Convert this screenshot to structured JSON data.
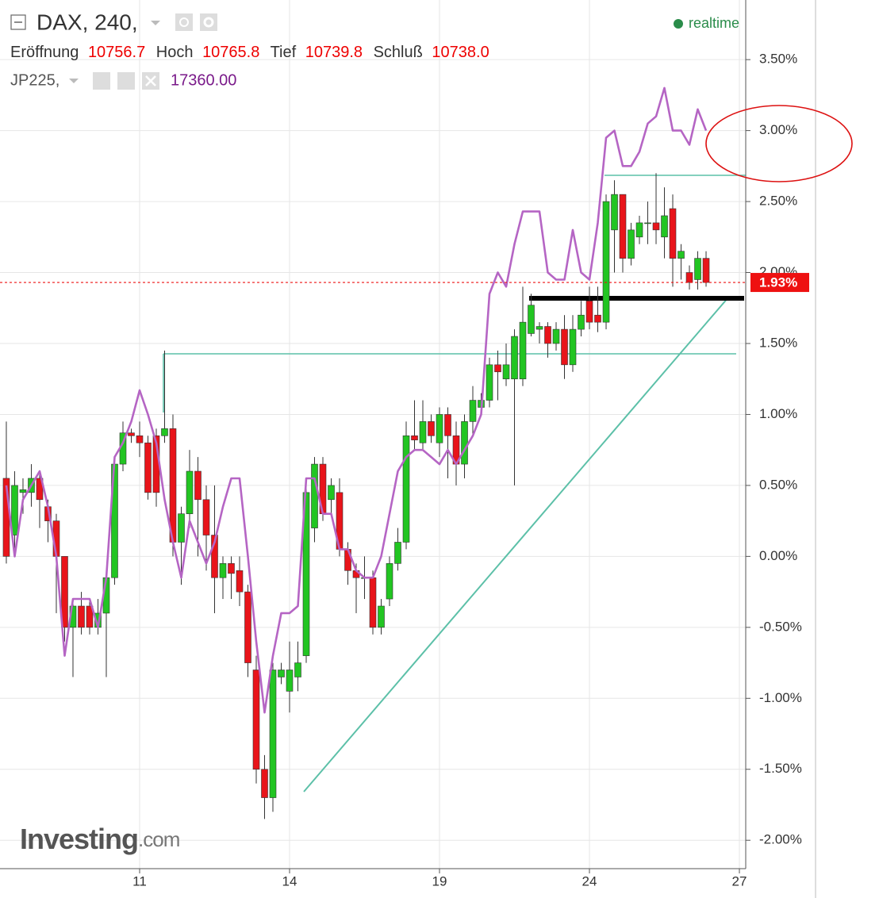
{
  "header": {
    "title": "DAX, 240,",
    "realtime": "realtime",
    "ohlc": [
      {
        "label": "Eröffnung",
        "value": "10756.7"
      },
      {
        "label": "Hoch",
        "value": "10765.8"
      },
      {
        "label": "Tief",
        "value": "10739.8"
      },
      {
        "label": "Schluß",
        "value": "10738.0"
      }
    ],
    "compare": {
      "name": "JP225,",
      "value": "17360.00"
    },
    "watermark": {
      "brand": "Investing",
      "suffix": ".com"
    }
  },
  "chart_data": {
    "type": "candlestick",
    "up_color": "#22c522",
    "down_color": "#e8141a",
    "wick_color": "#333333",
    "open": [
      0.55,
      0.15,
      0.45,
      0.45,
      0.55,
      0.35,
      0.25,
      0.0,
      -0.5,
      -0.35,
      -0.35,
      -0.5,
      -0.4,
      -0.15,
      0.65,
      0.87,
      0.85,
      0.8,
      0.85,
      0.85,
      0.9,
      0.1,
      0.3,
      0.6,
      0.4,
      0.15,
      -0.15,
      -0.05,
      -0.1,
      -0.25,
      -0.8,
      -1.5,
      -1.7,
      -0.85,
      -0.95,
      -0.85,
      -0.7,
      0.2,
      0.65,
      0.4,
      0.45,
      0.05,
      -0.1,
      -0.15,
      -0.15,
      -0.5,
      -0.3,
      -0.05,
      0.1,
      0.85,
      0.8,
      0.95,
      0.8,
      1.0,
      0.85,
      0.65,
      0.95,
      1.05,
      1.1,
      1.35,
      1.25,
      1.25,
      1.25,
      1.57,
      1.6,
      1.62,
      1.5,
      1.6,
      1.35,
      1.6,
      1.8,
      1.7,
      1.65,
      2.3,
      2.55,
      2.1,
      2.25,
      2.35,
      2.35,
      2.25,
      2.45,
      2.1,
      2.0,
      1.95,
      2.1
    ],
    "high": [
      0.95,
      0.6,
      0.55,
      0.65,
      0.6,
      0.4,
      0.3,
      0.0,
      -0.3,
      -0.25,
      -0.3,
      -0.3,
      -0.1,
      0.7,
      0.95,
      0.9,
      0.95,
      0.85,
      0.9,
      1.45,
      1.0,
      0.35,
      0.75,
      0.7,
      0.5,
      0.5,
      0.0,
      0.0,
      0.0,
      -0.2,
      -0.7,
      -1.4,
      -0.75,
      -0.75,
      -0.6,
      -0.6,
      0.5,
      0.7,
      0.7,
      0.55,
      0.55,
      0.1,
      -0.05,
      0.0,
      -0.1,
      -0.3,
      0.0,
      0.2,
      0.95,
      1.1,
      1.1,
      1.0,
      1.05,
      1.05,
      0.95,
      1.0,
      1.2,
      1.15,
      1.4,
      1.45,
      1.5,
      1.6,
      1.9,
      1.85,
      1.65,
      1.65,
      1.65,
      1.7,
      1.7,
      1.8,
      1.9,
      1.9,
      2.55,
      2.65,
      2.55,
      2.35,
      2.4,
      2.5,
      2.7,
      2.6,
      2.55,
      2.2,
      2.05,
      2.15,
      2.15
    ],
    "low": [
      -0.05,
      0.0,
      0.3,
      0.35,
      0.2,
      0.1,
      -0.4,
      -0.6,
      -0.85,
      -0.55,
      -0.55,
      -0.55,
      -0.85,
      -0.2,
      0.6,
      0.8,
      0.7,
      0.4,
      0.35,
      0.8,
      0.0,
      -0.2,
      0.2,
      0.0,
      -0.1,
      -0.4,
      -0.3,
      -0.3,
      -0.35,
      -0.85,
      -1.6,
      -1.85,
      -1.8,
      -0.9,
      -1.1,
      -0.95,
      -0.75,
      0.1,
      0.25,
      0.3,
      0.0,
      -0.2,
      -0.4,
      -0.3,
      -0.55,
      -0.55,
      -0.35,
      -0.1,
      0.05,
      0.75,
      0.75,
      0.8,
      0.7,
      0.55,
      0.5,
      0.55,
      0.85,
      1.0,
      1.05,
      1.1,
      1.2,
      0.5,
      1.2,
      1.55,
      1.5,
      1.4,
      1.45,
      1.25,
      1.3,
      1.55,
      1.6,
      1.58,
      1.6,
      2.0,
      2.0,
      2.05,
      2.2,
      2.2,
      2.2,
      2.1,
      1.9,
      1.95,
      1.88,
      1.88,
      1.9
    ],
    "close": [
      0.0,
      0.5,
      0.47,
      0.55,
      0.4,
      0.25,
      0.0,
      -0.5,
      -0.35,
      -0.5,
      -0.5,
      -0.4,
      -0.15,
      0.65,
      0.87,
      0.85,
      0.8,
      0.45,
      0.45,
      0.9,
      0.1,
      0.3,
      0.6,
      0.4,
      0.15,
      -0.15,
      -0.05,
      -0.12,
      -0.25,
      -0.75,
      -1.5,
      -1.7,
      -0.8,
      -0.8,
      -0.8,
      -0.75,
      0.45,
      0.65,
      0.3,
      0.5,
      0.05,
      -0.1,
      -0.15,
      -0.15,
      -0.5,
      -0.35,
      -0.05,
      0.1,
      0.85,
      0.82,
      0.95,
      0.85,
      1.0,
      0.85,
      0.65,
      0.95,
      1.1,
      1.1,
      1.35,
      1.3,
      1.35,
      1.55,
      1.65,
      1.77,
      1.62,
      1.5,
      1.6,
      1.35,
      1.6,
      1.7,
      1.65,
      1.65,
      2.5,
      2.55,
      2.1,
      2.3,
      2.35,
      2.35,
      2.3,
      2.4,
      2.1,
      2.15,
      1.93,
      2.1,
      1.93
    ],
    "overlay": {
      "color": "#b565c4",
      "values": [
        0.5,
        0.0,
        0.4,
        0.5,
        0.6,
        0.35,
        0.0,
        -0.7,
        -0.3,
        -0.3,
        -0.3,
        -0.5,
        -0.15,
        0.7,
        0.8,
        0.95,
        1.17,
        1.0,
        0.8,
        0.4,
        0.1,
        -0.15,
        0.25,
        0.1,
        -0.05,
        0.1,
        0.35,
        0.55,
        0.55,
        0.0,
        -0.6,
        -1.1,
        -0.7,
        -0.4,
        -0.4,
        -0.35,
        0.55,
        0.55,
        0.3,
        0.3,
        0.05,
        0.05,
        -0.1,
        -0.15,
        -0.15,
        0.0,
        0.3,
        0.6,
        0.7,
        0.75,
        0.75,
        0.7,
        0.65,
        0.75,
        0.65,
        0.75,
        0.85,
        1.0,
        1.85,
        2.0,
        1.9,
        2.2,
        2.43,
        2.43,
        2.43,
        2.0,
        1.95,
        1.95,
        2.3,
        2.0,
        1.95,
        2.35,
        2.95,
        3.0,
        2.75,
        2.75,
        2.85,
        3.05,
        3.1,
        3.3,
        3.0,
        3.0,
        2.9,
        3.15,
        3.0
      ]
    },
    "last_price": {
      "value": 1.93,
      "label": "1.93%",
      "color": "#ee1111"
    },
    "xlim": [
      -0.76,
      88.76
    ],
    "xticks": [
      {
        "value": 16,
        "label": "11"
      },
      {
        "value": 34,
        "label": "14"
      },
      {
        "value": 52,
        "label": "19"
      },
      {
        "value": 70,
        "label": "24"
      },
      {
        "value": 88,
        "label": "27"
      }
    ],
    "ylim": [
      -2.2,
      3.92
    ],
    "yticks": [
      {
        "value": 3.5,
        "label": "3.50%"
      },
      {
        "value": 3.0,
        "label": "3.00%"
      },
      {
        "value": 2.5,
        "label": "2.50%"
      },
      {
        "value": 2.0,
        "label": "2.00%"
      },
      {
        "value": 1.5,
        "label": "1.50%"
      },
      {
        "value": 1.0,
        "label": "1.00%"
      },
      {
        "value": 0.5,
        "label": "0.50%"
      },
      {
        "value": 0.0,
        "label": "0.00%"
      },
      {
        "value": -0.5,
        "label": "-0.50%"
      },
      {
        "value": -1.0,
        "label": "-1.00%"
      },
      {
        "value": -1.5,
        "label": "-1.50%"
      },
      {
        "value": -2.0,
        "label": "-2.00%"
      }
    ],
    "grid": true
  }
}
